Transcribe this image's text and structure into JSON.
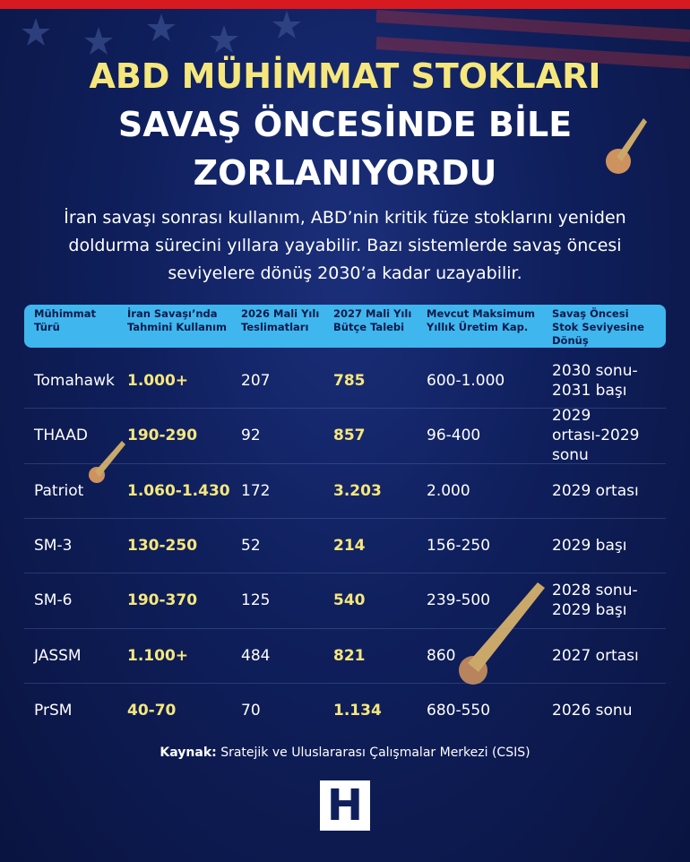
{
  "header": {
    "title_lines": [
      "ABD MÜHİMMAT STOKLARI",
      "SAVAŞ ÖNCESİNDE BİLE",
      "ZORLANIYORDU"
    ],
    "subtitle": "İran savaşı sonrası kullanım, ABD’nin kritik füze stoklarını yeniden doldurma sürecini yıllara yayabilir. Bazı sistemlerde savaş öncesi seviyelere dönüş 2030’a kadar uzayabilir."
  },
  "table": {
    "columns": [
      "Mühimmat Türü",
      "İran Savaşı’nda Tahmini Kullanım",
      "2026 Mali Yılı Teslimatları",
      "2027 Mali Yılı Bütçe Talebi",
      "Mevcut Maksimum Yıllık Üretim Kap.",
      "Savaş Öncesi Stok Seviyesine Dönüş"
    ],
    "rows": [
      [
        "Tomahawk",
        "1.000+",
        "207",
        "785",
        "600-1.000",
        "2030 sonu-2031 başı"
      ],
      [
        "THAAD",
        "190-290",
        "92",
        "857",
        "96-400",
        "2029 ortası-2029 sonu"
      ],
      [
        "Patriot",
        "1.060-1.430",
        "172",
        "3.203",
        "2.000",
        "2029 ortası"
      ],
      [
        "SM-3",
        "130-250",
        "52",
        "214",
        "156-250",
        "2029 başı"
      ],
      [
        "SM-6",
        "190-370",
        "125",
        "540",
        "239-500",
        "2028 sonu-2029 başı"
      ],
      [
        "JASSM",
        "1.100+",
        "484",
        "821",
        "860",
        "2027 ortası"
      ],
      [
        "PrSM",
        "40-70",
        "70",
        "1.134",
        "680-550",
        "2026 sonu"
      ]
    ]
  },
  "source": {
    "label": "Kaynak:",
    "text": "Sratejik ve Uluslararası Çalışmalar Merkezi (CSIS)"
  },
  "logo": "H"
}
